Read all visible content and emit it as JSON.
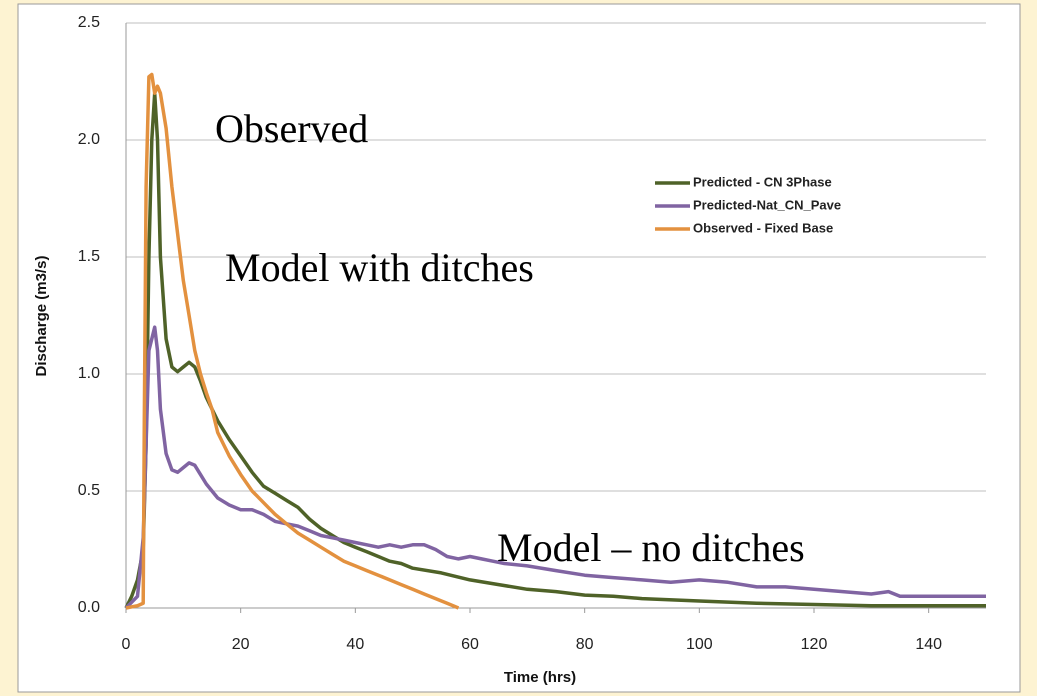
{
  "chart_data": {
    "type": "line",
    "xlabel": "Time (hrs)",
    "ylabel": "Discharge (m3/s)",
    "xlim": [
      0,
      150
    ],
    "xticks": [
      0,
      20,
      40,
      60,
      80,
      100,
      120,
      140
    ],
    "ylim": [
      0,
      2.5
    ],
    "yticks": [
      {
        "value": 0,
        "label": "0.0"
      },
      0.5,
      {
        "value": 1,
        "label": "1.0"
      },
      1.5,
      {
        "value": 2,
        "label": "2.0"
      },
      2.5
    ],
    "grid": true,
    "legend": "upper right",
    "annotations": [
      "Observed",
      "Model with ditches",
      "Model – no ditches"
    ],
    "series": [
      {
        "name": "Predicted - CN 3Phase",
        "color": "#4f6228",
        "x": [
          0,
          1,
          2,
          3,
          3.5,
          4,
          4.5,
          5,
          5.5,
          6,
          7,
          8,
          9,
          10,
          11,
          12,
          13,
          14,
          16,
          18,
          20,
          22,
          24,
          26,
          28,
          30,
          32,
          34,
          36,
          38,
          40,
          42,
          44,
          46,
          48,
          50,
          55,
          60,
          65,
          70,
          75,
          80,
          85,
          90,
          100,
          110,
          120,
          130,
          140,
          150
        ],
        "values": [
          0,
          0.05,
          0.12,
          0.25,
          0.7,
          1.5,
          2.0,
          2.2,
          2.0,
          1.5,
          1.15,
          1.03,
          1.01,
          1.03,
          1.05,
          1.03,
          0.97,
          0.9,
          0.8,
          0.72,
          0.65,
          0.58,
          0.52,
          0.49,
          0.46,
          0.43,
          0.38,
          0.34,
          0.31,
          0.28,
          0.26,
          0.24,
          0.22,
          0.2,
          0.19,
          0.17,
          0.15,
          0.12,
          0.1,
          0.08,
          0.07,
          0.055,
          0.05,
          0.04,
          0.03,
          0.02,
          0.015,
          0.01,
          0.01,
          0.01
        ]
      },
      {
        "name": "Predicted-Nat_CN_Pave",
        "color": "#8064a2",
        "x": [
          0,
          2,
          3,
          3.5,
          4,
          5,
          5.5,
          6,
          7,
          8,
          9,
          10,
          11,
          12,
          13,
          14,
          16,
          18,
          20,
          22,
          24,
          26,
          28,
          30,
          32,
          34,
          36,
          38,
          40,
          42,
          44,
          46,
          48,
          50,
          52,
          54,
          56,
          58,
          60,
          62,
          64,
          66,
          70,
          75,
          80,
          85,
          90,
          95,
          100,
          105,
          110,
          115,
          120,
          125,
          130,
          133,
          135,
          140,
          145,
          150
        ],
        "values": [
          0,
          0.05,
          0.3,
          0.7,
          1.1,
          1.2,
          1.1,
          0.85,
          0.66,
          0.59,
          0.58,
          0.6,
          0.62,
          0.61,
          0.57,
          0.53,
          0.47,
          0.44,
          0.42,
          0.42,
          0.4,
          0.37,
          0.36,
          0.35,
          0.33,
          0.31,
          0.3,
          0.29,
          0.28,
          0.27,
          0.26,
          0.27,
          0.26,
          0.27,
          0.27,
          0.25,
          0.22,
          0.21,
          0.22,
          0.21,
          0.2,
          0.19,
          0.18,
          0.16,
          0.14,
          0.13,
          0.12,
          0.11,
          0.12,
          0.11,
          0.09,
          0.09,
          0.08,
          0.07,
          0.06,
          0.07,
          0.05,
          0.05,
          0.05,
          0.05
        ]
      },
      {
        "name": "Observed - Fixed Base",
        "color": "#e3913f",
        "x": [
          0,
          2,
          3,
          3.2,
          3.5,
          4,
          4.5,
          5,
          5.5,
          6,
          7,
          8,
          9,
          10,
          11,
          12,
          13,
          14,
          15,
          16,
          18,
          20,
          22,
          24,
          26,
          28,
          30,
          32,
          34,
          36,
          38,
          40,
          42,
          44,
          46,
          48,
          50,
          52,
          54,
          56,
          58
        ],
        "values": [
          0,
          0.01,
          0.02,
          0.8,
          1.8,
          2.27,
          2.28,
          2.2,
          2.23,
          2.2,
          2.05,
          1.8,
          1.6,
          1.4,
          1.25,
          1.1,
          1.0,
          0.92,
          0.85,
          0.75,
          0.65,
          0.57,
          0.5,
          0.45,
          0.4,
          0.36,
          0.32,
          0.29,
          0.26,
          0.23,
          0.2,
          0.18,
          0.16,
          0.14,
          0.12,
          0.1,
          0.08,
          0.06,
          0.04,
          0.02,
          0
        ]
      }
    ]
  }
}
